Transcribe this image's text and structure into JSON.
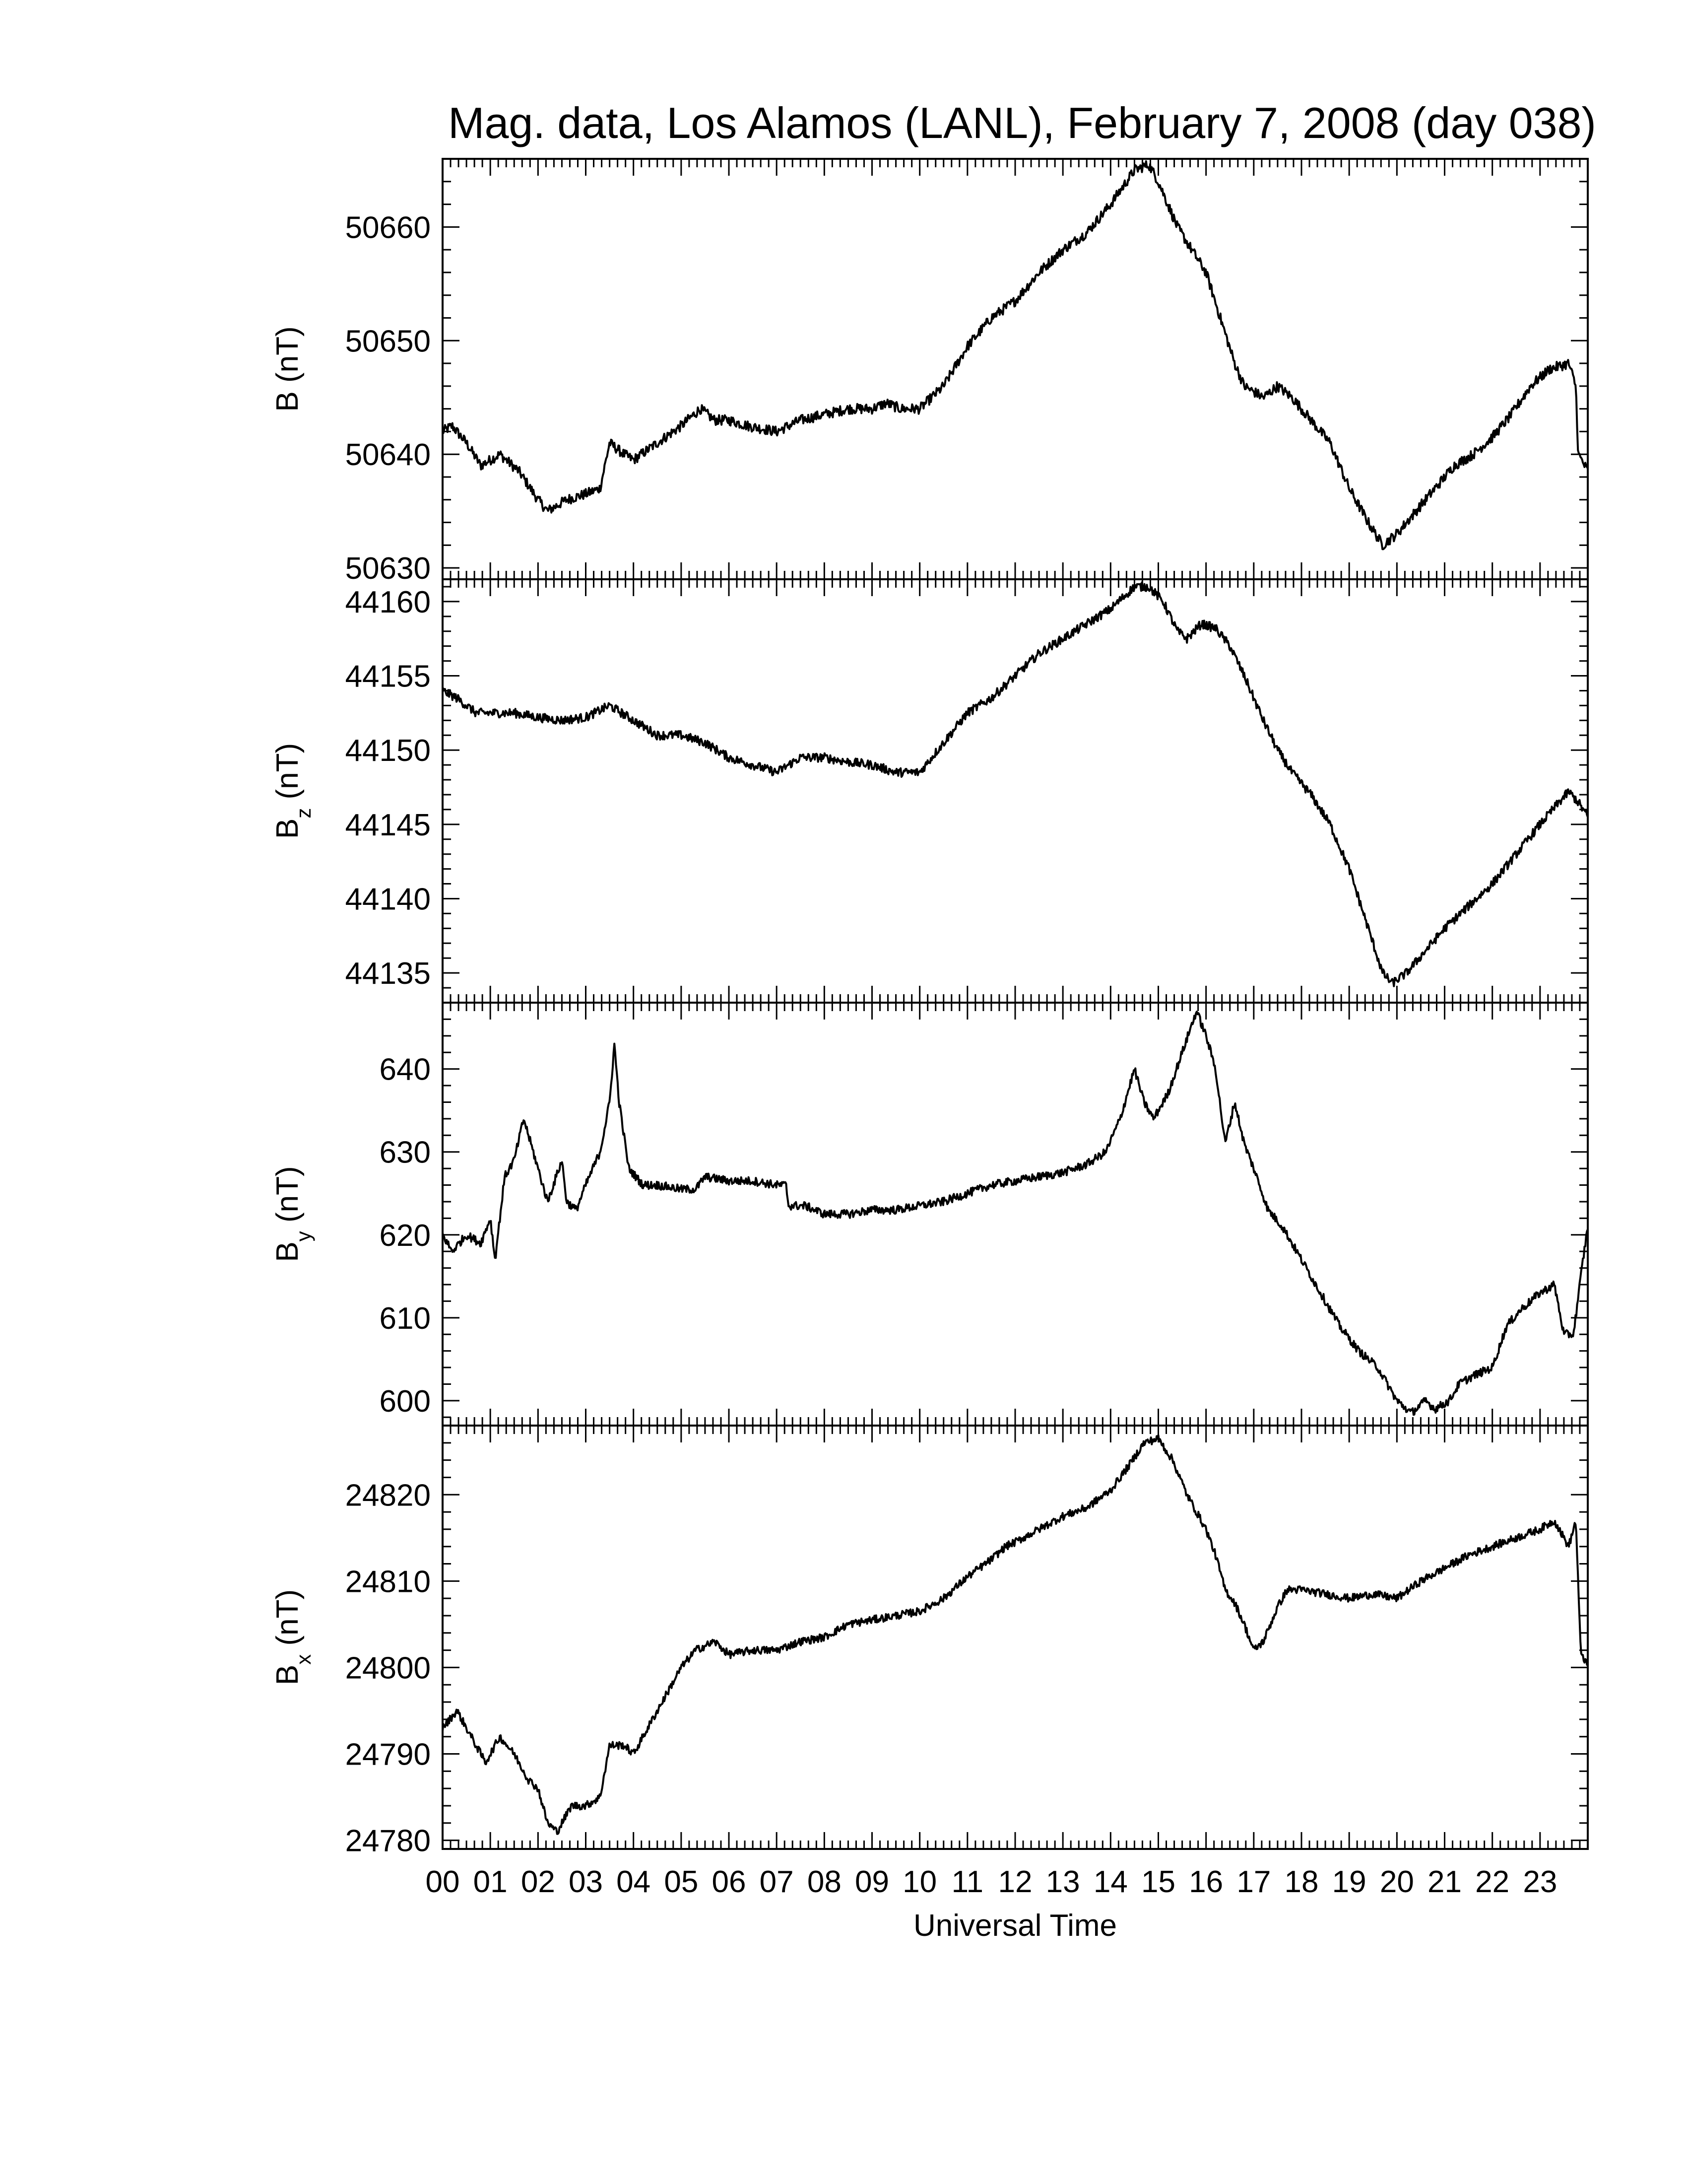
{
  "chart_data": {
    "type": "line",
    "title": "Mag. data, Los Alamos (LANL), February 7, 2008 (day 038)",
    "xlabel": "Universal Time",
    "xlim": [
      0,
      24
    ],
    "x_tick_labels": [
      "00",
      "01",
      "02",
      "03",
      "04",
      "05",
      "06",
      "07",
      "08",
      "09",
      "10",
      "11",
      "12",
      "13",
      "14",
      "15",
      "16",
      "17",
      "18",
      "19",
      "20",
      "21",
      "22",
      "23"
    ],
    "line_color": "#000000",
    "panels": [
      {
        "id": "B",
        "ylabel_main": "B",
        "ylabel_sub": "",
        "ylabel_unit": "(nT)",
        "ylim": [
          50629,
          50666
        ],
        "yticks": [
          50630,
          50640,
          50650,
          50660
        ],
        "noise": 0.45,
        "points": [
          [
            0,
            50642
          ],
          [
            0.2,
            50642.5
          ],
          [
            0.5,
            50641
          ],
          [
            0.8,
            50639
          ],
          [
            1.2,
            50640
          ],
          [
            1.6,
            50638.5
          ],
          [
            2,
            50636
          ],
          [
            2.2,
            50635
          ],
          [
            2.6,
            50636
          ],
          [
            3,
            50636.5
          ],
          [
            3.3,
            50637
          ],
          [
            3.5,
            50641
          ],
          [
            3.8,
            50640
          ],
          [
            4,
            50639.5
          ],
          [
            4.5,
            50641
          ],
          [
            5,
            50642.5
          ],
          [
            5.4,
            50644
          ],
          [
            5.7,
            50643
          ],
          [
            6,
            50643
          ],
          [
            6.4,
            50642.5
          ],
          [
            7,
            50642
          ],
          [
            7.5,
            50643
          ],
          [
            8,
            50643.5
          ],
          [
            8.5,
            50644
          ],
          [
            9,
            50644
          ],
          [
            9.3,
            50644.5
          ],
          [
            9.6,
            50644
          ],
          [
            10,
            50644
          ],
          [
            10.5,
            50646
          ],
          [
            11,
            50649.5
          ],
          [
            11.5,
            50652
          ],
          [
            12,
            50653.5
          ],
          [
            12.5,
            50656
          ],
          [
            13,
            50658
          ],
          [
            13.5,
            50659.5
          ],
          [
            14,
            50662
          ],
          [
            14.5,
            50665
          ],
          [
            14.8,
            50665.5
          ],
          [
            15,
            50664
          ],
          [
            15.4,
            50660
          ],
          [
            15.7,
            50658
          ],
          [
            16,
            50656
          ],
          [
            16.3,
            50652
          ],
          [
            16.6,
            50648
          ],
          [
            16.8,
            50646
          ],
          [
            17.2,
            50645
          ],
          [
            17.5,
            50646
          ],
          [
            17.8,
            50645
          ],
          [
            18.2,
            50643
          ],
          [
            18.6,
            50641
          ],
          [
            19,
            50637
          ],
          [
            19.4,
            50634
          ],
          [
            19.7,
            50632
          ],
          [
            20,
            50633
          ],
          [
            20.4,
            50635
          ],
          [
            20.8,
            50637
          ],
          [
            21.2,
            50639
          ],
          [
            21.6,
            50640
          ],
          [
            22,
            50641.5
          ],
          [
            22.4,
            50643.5
          ],
          [
            22.8,
            50646
          ],
          [
            23.2,
            50647.5
          ],
          [
            23.6,
            50648
          ],
          [
            23.75,
            50646
          ],
          [
            23.8,
            50640
          ],
          [
            24,
            50638.5
          ]
        ]
      },
      {
        "id": "Bz",
        "ylabel_main": "B",
        "ylabel_sub": "z",
        "ylabel_unit": "(nT)",
        "ylim": [
          44133,
          44161.5
        ],
        "yticks": [
          44135,
          44140,
          44145,
          44150,
          44155,
          44160
        ],
        "noise": 0.3,
        "points": [
          [
            0,
            44154
          ],
          [
            0.3,
            44153.5
          ],
          [
            0.7,
            44152.5
          ],
          [
            1,
            44152.5
          ],
          [
            1.5,
            44152.5
          ],
          [
            2,
            44152.2
          ],
          [
            2.5,
            44152
          ],
          [
            3,
            44152.2
          ],
          [
            3.5,
            44153
          ],
          [
            4,
            44152
          ],
          [
            4.5,
            44151
          ],
          [
            5,
            44151
          ],
          [
            5.5,
            44150.5
          ],
          [
            6,
            44149.5
          ],
          [
            6.5,
            44149
          ],
          [
            7,
            44148.5
          ],
          [
            7.5,
            44149.5
          ],
          [
            8,
            44149.5
          ],
          [
            8.5,
            44149.2
          ],
          [
            9,
            44149
          ],
          [
            9.5,
            44148.5
          ],
          [
            10,
            44148.5
          ],
          [
            10.5,
            44150.5
          ],
          [
            11,
            44152.5
          ],
          [
            11.5,
            44153.5
          ],
          [
            12,
            44155
          ],
          [
            12.5,
            44156.5
          ],
          [
            13,
            44157.5
          ],
          [
            13.5,
            44158.5
          ],
          [
            14,
            44159.5
          ],
          [
            14.5,
            44161
          ],
          [
            14.8,
            44161
          ],
          [
            15.1,
            44160
          ],
          [
            15.4,
            44158
          ],
          [
            15.6,
            44157.5
          ],
          [
            15.9,
            44158.5
          ],
          [
            16.2,
            44158.2
          ],
          [
            16.5,
            44157
          ],
          [
            16.8,
            44155
          ],
          [
            17.2,
            44152
          ],
          [
            17.5,
            44150
          ],
          [
            17.8,
            44148.5
          ],
          [
            18.2,
            44147
          ],
          [
            18.6,
            44145
          ],
          [
            19,
            44142
          ],
          [
            19.4,
            44138
          ],
          [
            19.7,
            44135
          ],
          [
            19.9,
            44134.3
          ],
          [
            20.2,
            44135
          ],
          [
            20.6,
            44136.5
          ],
          [
            21,
            44138
          ],
          [
            21.5,
            44139.5
          ],
          [
            22,
            44141
          ],
          [
            22.5,
            44143
          ],
          [
            23,
            44145
          ],
          [
            23.4,
            44146.5
          ],
          [
            23.6,
            44147.2
          ],
          [
            23.8,
            44146.5
          ],
          [
            24,
            44145.5
          ]
        ]
      },
      {
        "id": "By",
        "ylabel_main": "B",
        "ylabel_sub": "y",
        "ylabel_unit": "(nT)",
        "ylim": [
          597,
          648
        ],
        "yticks": [
          600,
          610,
          620,
          630,
          640
        ],
        "noise": 0.5,
        "points": [
          [
            0,
            620
          ],
          [
            0.2,
            618
          ],
          [
            0.5,
            620
          ],
          [
            0.8,
            619
          ],
          [
            1,
            622
          ],
          [
            1.1,
            617
          ],
          [
            1.3,
            627
          ],
          [
            1.5,
            629
          ],
          [
            1.7,
            634
          ],
          [
            1.9,
            630
          ],
          [
            2.2,
            624
          ],
          [
            2.5,
            629
          ],
          [
            2.6,
            624
          ],
          [
            2.8,
            623
          ],
          [
            3,
            626
          ],
          [
            3.3,
            630
          ],
          [
            3.5,
            636
          ],
          [
            3.6,
            643
          ],
          [
            3.7,
            636
          ],
          [
            3.9,
            628
          ],
          [
            4.2,
            626
          ],
          [
            4.5,
            626
          ],
          [
            5,
            625.5
          ],
          [
            5.3,
            625.5
          ],
          [
            5.5,
            627
          ],
          [
            6,
            626.5
          ],
          [
            6.5,
            626.5
          ],
          [
            7,
            626
          ],
          [
            7.2,
            626
          ],
          [
            7.25,
            623.5
          ],
          [
            7.6,
            623.5
          ],
          [
            8,
            622.5
          ],
          [
            8.5,
            622.5
          ],
          [
            9,
            623
          ],
          [
            9.5,
            623
          ],
          [
            10,
            623.5
          ],
          [
            10.5,
            624
          ],
          [
            11,
            625
          ],
          [
            11.5,
            626
          ],
          [
            12,
            626.5
          ],
          [
            12.5,
            627
          ],
          [
            13,
            627.5
          ],
          [
            13.5,
            628.5
          ],
          [
            13.9,
            630
          ],
          [
            14.2,
            634
          ],
          [
            14.5,
            640
          ],
          [
            14.7,
            636
          ],
          [
            14.9,
            634
          ],
          [
            15.2,
            637
          ],
          [
            15.5,
            642
          ],
          [
            15.8,
            647
          ],
          [
            16,
            644
          ],
          [
            16.2,
            640
          ],
          [
            16.4,
            631
          ],
          [
            16.6,
            636
          ],
          [
            16.8,
            631
          ],
          [
            17,
            628
          ],
          [
            17.3,
            623
          ],
          [
            17.6,
            621
          ],
          [
            18,
            617
          ],
          [
            18.4,
            613
          ],
          [
            18.8,
            609
          ],
          [
            19.2,
            606
          ],
          [
            19.6,
            604
          ],
          [
            20,
            600
          ],
          [
            20.3,
            598.5
          ],
          [
            20.6,
            600
          ],
          [
            20.8,
            599
          ],
          [
            21.1,
            600
          ],
          [
            21.3,
            602
          ],
          [
            21.6,
            603
          ],
          [
            22,
            604
          ],
          [
            22.3,
            609
          ],
          [
            22.6,
            611
          ],
          [
            23,
            613
          ],
          [
            23.3,
            614
          ],
          [
            23.5,
            608
          ],
          [
            23.7,
            608
          ],
          [
            23.9,
            617
          ],
          [
            24,
            621
          ]
        ]
      },
      {
        "id": "Bx",
        "ylabel_main": "B",
        "ylabel_sub": "x",
        "ylabel_unit": "(nT)",
        "ylim": [
          24779,
          24828
        ],
        "yticks": [
          24780,
          24790,
          24800,
          24810,
          24820
        ],
        "noise": 0.45,
        "points": [
          [
            0,
            24793
          ],
          [
            0.3,
            24795
          ],
          [
            0.6,
            24792
          ],
          [
            0.9,
            24789
          ],
          [
            1.2,
            24792
          ],
          [
            1.5,
            24790
          ],
          [
            1.8,
            24787
          ],
          [
            2,
            24786
          ],
          [
            2.2,
            24782
          ],
          [
            2.4,
            24781
          ],
          [
            2.7,
            24784
          ],
          [
            3,
            24784
          ],
          [
            3.3,
            24785
          ],
          [
            3.5,
            24791
          ],
          [
            3.8,
            24791
          ],
          [
            4,
            24790
          ],
          [
            4.3,
            24793
          ],
          [
            4.7,
            24797
          ],
          [
            5,
            24800
          ],
          [
            5.3,
            24802
          ],
          [
            5.7,
            24803
          ],
          [
            6,
            24801.5
          ],
          [
            6.5,
            24802
          ],
          [
            7,
            24802
          ],
          [
            7.5,
            24803
          ],
          [
            8,
            24803.5
          ],
          [
            8.5,
            24805
          ],
          [
            9,
            24805.5
          ],
          [
            9.5,
            24806
          ],
          [
            10,
            24806.5
          ],
          [
            10.5,
            24808
          ],
          [
            11,
            24810.5
          ],
          [
            11.5,
            24812.5
          ],
          [
            11.8,
            24814
          ],
          [
            12,
            24814.5
          ],
          [
            12.5,
            24816
          ],
          [
            13,
            24817.5
          ],
          [
            13.5,
            24818.5
          ],
          [
            14,
            24820.5
          ],
          [
            14.4,
            24823.5
          ],
          [
            14.7,
            24826
          ],
          [
            15,
            24826.5
          ],
          [
            15.3,
            24824
          ],
          [
            15.6,
            24820
          ],
          [
            16,
            24816
          ],
          [
            16.2,
            24813
          ],
          [
            16.4,
            24809
          ],
          [
            16.6,
            24807.5
          ],
          [
            16.8,
            24805
          ],
          [
            17,
            24802
          ],
          [
            17.2,
            24803
          ],
          [
            17.5,
            24807
          ],
          [
            17.7,
            24809
          ],
          [
            18,
            24809
          ],
          [
            18.5,
            24808.5
          ],
          [
            19,
            24808
          ],
          [
            19.5,
            24808.5
          ],
          [
            20,
            24808
          ],
          [
            20.5,
            24810
          ],
          [
            21,
            24811.5
          ],
          [
            21.5,
            24813
          ],
          [
            22,
            24814
          ],
          [
            22.5,
            24815
          ],
          [
            23,
            24816
          ],
          [
            23.3,
            24817
          ],
          [
            23.6,
            24814
          ],
          [
            23.75,
            24817
          ],
          [
            23.85,
            24802
          ],
          [
            24,
            24800
          ]
        ]
      }
    ]
  }
}
